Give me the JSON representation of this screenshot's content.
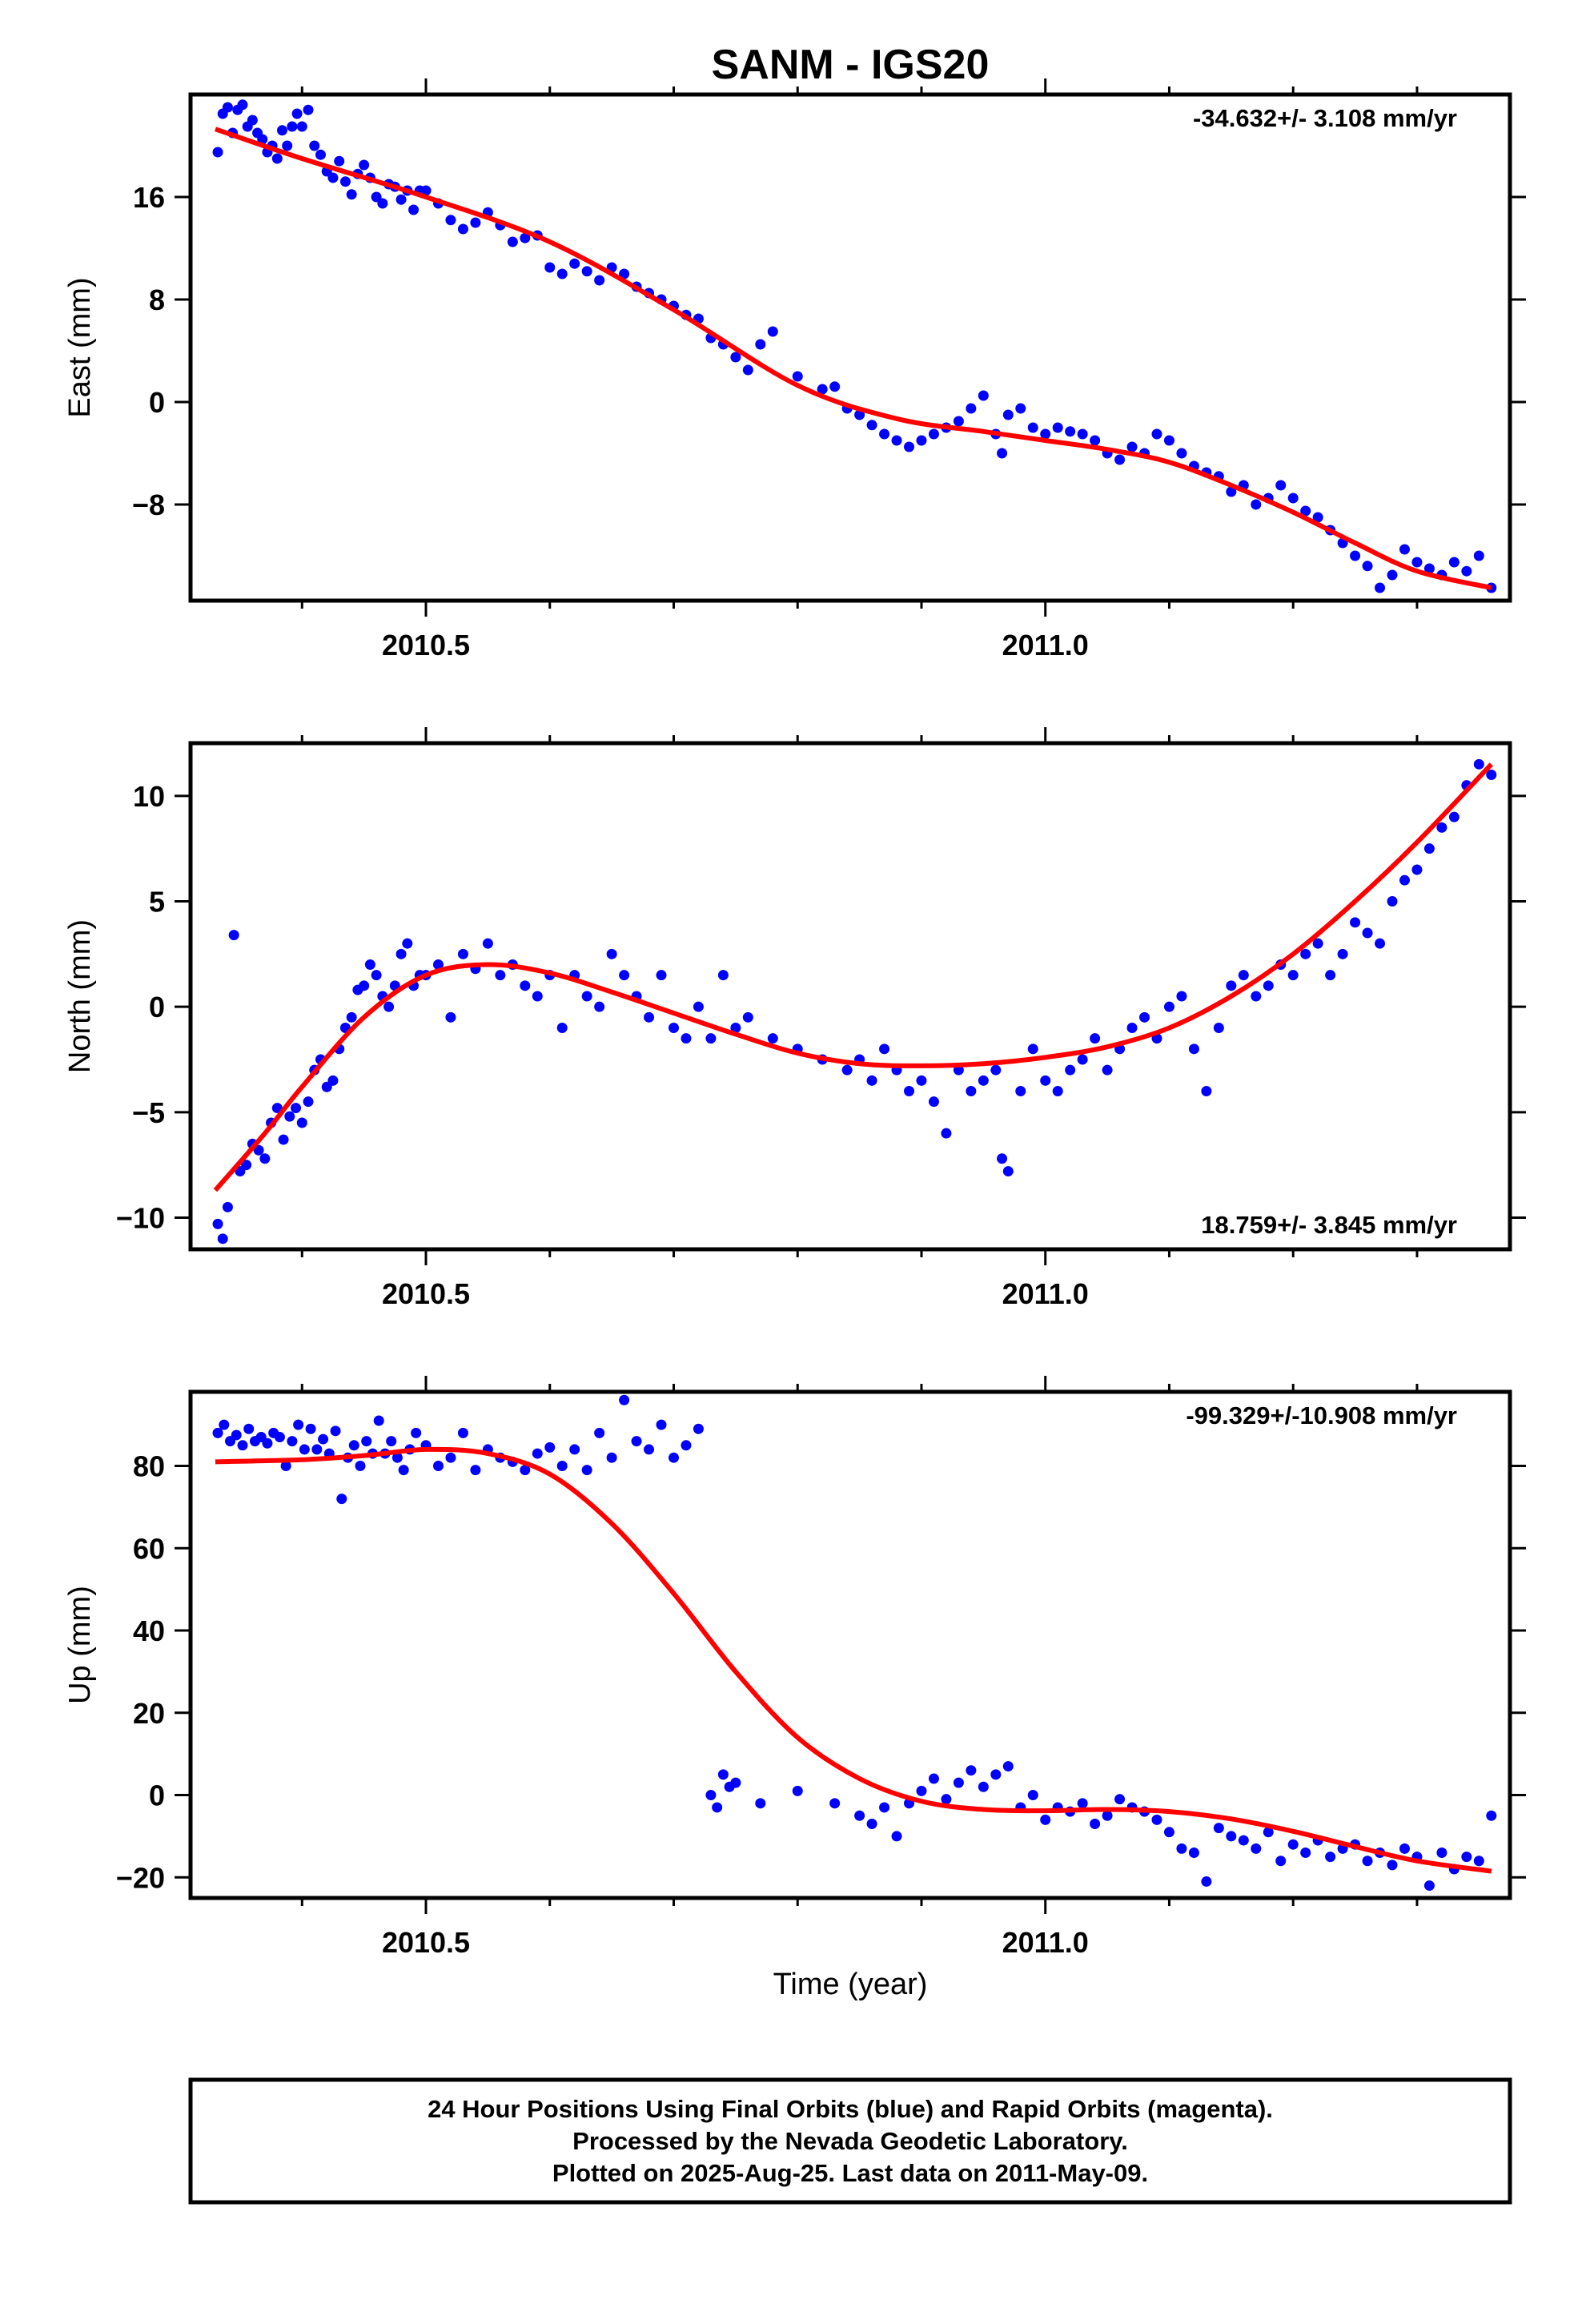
{
  "title": "SANM - IGS20",
  "xlabel": "Time (year)",
  "caption": [
    "24 Hour Positions Using Final Orbits (blue) and Rapid Orbits (magenta).",
    "Processed by the Nevada Geodetic Laboratory.",
    "Plotted on 2025-Aug-25. Last data on 2011-May-09."
  ],
  "colors": {
    "data": "#0000ff",
    "fit": "#ff0000",
    "frame": "#000000"
  },
  "chart_data": [
    {
      "type": "scatter",
      "ylabel": "East (mm)",
      "rate": "-34.632+/- 3.108 mm/yr",
      "rate_position": "top-right",
      "xlim": [
        2010.31,
        2011.375
      ],
      "ylim": [
        -15.5,
        24
      ],
      "xticks": [
        2010.5,
        2011.0
      ],
      "xtick_labels": [
        "2010.5",
        "2011.0"
      ],
      "yticks": [
        16,
        8,
        0,
        -8
      ],
      "ytick_labels": [
        "16",
        "8",
        "0",
        "−8"
      ],
      "fit": {
        "x": [
          2010.33,
          2010.4,
          2010.5,
          2010.6,
          2010.7,
          2010.8,
          2010.88,
          2010.95,
          2011.0,
          2011.05,
          2011.1,
          2011.15,
          2011.2,
          2011.25,
          2011.3,
          2011.36
        ],
        "y": [
          21.3,
          19.0,
          16.0,
          12.5,
          7.2,
          1.3,
          -1.3,
          -2.3,
          -3.0,
          -3.7,
          -4.7,
          -6.5,
          -8.6,
          -11.0,
          -13.2,
          -14.5
        ]
      },
      "series": [
        {
          "name": "Final Orbits",
          "x": [
            2010.332,
            2010.336,
            2010.34,
            2010.344,
            2010.348,
            2010.352,
            2010.356,
            2010.36,
            2010.364,
            2010.368,
            2010.372,
            2010.376,
            2010.38,
            2010.384,
            2010.388,
            2010.392,
            2010.396,
            2010.4,
            2010.405,
            2010.41,
            2010.415,
            2010.42,
            2010.425,
            2010.43,
            2010.435,
            2010.44,
            2010.445,
            2010.45,
            2010.455,
            2010.46,
            2010.465,
            2010.47,
            2010.475,
            2010.48,
            2010.485,
            2010.49,
            2010.495,
            2010.5,
            2010.51,
            2010.52,
            2010.53,
            2010.54,
            2010.55,
            2010.56,
            2010.57,
            2010.58,
            2010.59,
            2010.6,
            2010.61,
            2010.62,
            2010.63,
            2010.64,
            2010.65,
            2010.66,
            2010.67,
            2010.68,
            2010.69,
            2010.7,
            2010.71,
            2010.72,
            2010.73,
            2010.74,
            2010.75,
            2010.76,
            2010.77,
            2010.78,
            2010.8,
            2010.82,
            2010.83,
            2010.84,
            2010.85,
            2010.86,
            2010.87,
            2010.88,
            2010.89,
            2010.9,
            2010.91,
            2010.92,
            2010.93,
            2010.94,
            2010.95,
            2010.96,
            2010.965,
            2010.97,
            2010.98,
            2010.99,
            2011.0,
            2011.01,
            2011.02,
            2011.03,
            2011.04,
            2011.05,
            2011.06,
            2011.07,
            2011.08,
            2011.09,
            2011.1,
            2011.11,
            2011.12,
            2011.13,
            2011.14,
            2011.15,
            2011.16,
            2011.17,
            2011.18,
            2011.19,
            2011.2,
            2011.21,
            2011.22,
            2011.23,
            2011.24,
            2011.25,
            2011.26,
            2011.27,
            2011.28,
            2011.29,
            2011.3,
            2011.31,
            2011.32,
            2011.33,
            2011.34,
            2011.35,
            2011.36
          ],
          "y": [
            19.5,
            22.5,
            23.0,
            21.0,
            22.8,
            23.2,
            21.5,
            22.0,
            21.0,
            20.5,
            19.5,
            20.0,
            19.0,
            21.2,
            20.0,
            21.5,
            22.5,
            21.5,
            22.8,
            20.0,
            19.3,
            18.0,
            17.5,
            18.8,
            17.2,
            16.2,
            17.8,
            18.5,
            17.5,
            16.0,
            15.5,
            17.0,
            16.8,
            15.8,
            16.5,
            15.0,
            16.5,
            16.5,
            15.5,
            14.2,
            13.5,
            14.0,
            14.8,
            13.8,
            12.5,
            12.8,
            13.0,
            10.5,
            10.0,
            10.8,
            10.2,
            9.5,
            10.5,
            10.0,
            9.0,
            8.5,
            8.0,
            7.5,
            6.8,
            6.5,
            5.0,
            4.5,
            3.5,
            2.5,
            4.5,
            5.5,
            2.0,
            1.0,
            1.2,
            -0.5,
            -1.0,
            -1.8,
            -2.5,
            -3.0,
            -3.5,
            -3.0,
            -2.5,
            -2.0,
            -1.5,
            -0.5,
            0.5,
            -2.5,
            -4.0,
            -1.0,
            -0.5,
            -2.0,
            -2.5,
            -2.0,
            -2.3,
            -2.5,
            -3.0,
            -4.0,
            -4.5,
            -3.5,
            -4.0,
            -2.5,
            -3.0,
            -4.0,
            -5.0,
            -5.5,
            -5.8,
            -7.0,
            -6.5,
            -8.0,
            -7.5,
            -6.5,
            -7.5,
            -8.5,
            -9.0,
            -10.0,
            -11.0,
            -12.0,
            -12.8,
            -14.5,
            -13.5,
            -11.5,
            -12.5,
            -13.0,
            -13.5,
            -12.5,
            -13.2,
            -12.0,
            -14.5
          ]
        }
      ]
    },
    {
      "type": "scatter",
      "ylabel": "North (mm)",
      "rate": "18.759+/- 3.845 mm/yr",
      "rate_position": "bottom-right",
      "xlim": [
        2010.31,
        2011.375
      ],
      "ylim": [
        -11.5,
        12.5
      ],
      "xticks": [
        2010.5,
        2011.0
      ],
      "xtick_labels": [
        "2010.5",
        "2011.0"
      ],
      "yticks": [
        10,
        5,
        0,
        -5,
        -10
      ],
      "ytick_labels": [
        "10",
        "5",
        "0",
        "−5",
        "−10"
      ],
      "fit": {
        "x": [
          2010.33,
          2010.37,
          2010.4,
          2010.45,
          2010.5,
          2010.55,
          2010.6,
          2010.65,
          2010.7,
          2010.75,
          2010.8,
          2010.85,
          2010.9,
          2010.95,
          2011.0,
          2011.05,
          2011.1,
          2011.15,
          2011.2,
          2011.25,
          2011.3,
          2011.36
        ],
        "y": [
          -8.7,
          -6.0,
          -3.8,
          -0.5,
          1.5,
          2.0,
          1.6,
          0.7,
          -0.3,
          -1.3,
          -2.2,
          -2.7,
          -2.8,
          -2.7,
          -2.4,
          -1.9,
          -1.0,
          0.5,
          2.5,
          5.0,
          7.8,
          11.5
        ]
      },
      "series": [
        {
          "name": "Final Orbits",
          "x": [
            2010.332,
            2010.336,
            2010.34,
            2010.345,
            2010.35,
            2010.355,
            2010.36,
            2010.365,
            2010.37,
            2010.375,
            2010.38,
            2010.385,
            2010.39,
            2010.395,
            2010.4,
            2010.405,
            2010.41,
            2010.415,
            2010.42,
            2010.425,
            2010.43,
            2010.435,
            2010.44,
            2010.445,
            2010.45,
            2010.455,
            2010.46,
            2010.465,
            2010.47,
            2010.475,
            2010.48,
            2010.485,
            2010.49,
            2010.495,
            2010.5,
            2010.51,
            2010.52,
            2010.53,
            2010.54,
            2010.55,
            2010.56,
            2010.57,
            2010.58,
            2010.59,
            2010.6,
            2010.61,
            2010.62,
            2010.63,
            2010.64,
            2010.65,
            2010.66,
            2010.67,
            2010.68,
            2010.69,
            2010.7,
            2010.71,
            2010.72,
            2010.73,
            2010.74,
            2010.75,
            2010.76,
            2010.78,
            2010.8,
            2010.82,
            2010.84,
            2010.85,
            2010.86,
            2010.87,
            2010.88,
            2010.89,
            2010.9,
            2010.91,
            2010.92,
            2010.93,
            2010.94,
            2010.95,
            2010.96,
            2010.965,
            2010.97,
            2010.98,
            2010.99,
            2011.0,
            2011.01,
            2011.02,
            2011.03,
            2011.04,
            2011.05,
            2011.06,
            2011.07,
            2011.08,
            2011.09,
            2011.1,
            2011.11,
            2011.12,
            2011.13,
            2011.14,
            2011.15,
            2011.16,
            2011.17,
            2011.18,
            2011.19,
            2011.2,
            2011.21,
            2011.22,
            2011.23,
            2011.24,
            2011.25,
            2011.26,
            2011.27,
            2011.28,
            2011.29,
            2011.3,
            2011.31,
            2011.32,
            2011.33,
            2011.34,
            2011.35,
            2011.36
          ],
          "y": [
            -10.3,
            -11.0,
            -9.5,
            3.4,
            -7.8,
            -7.5,
            -6.5,
            -6.8,
            -7.2,
            -5.5,
            -4.8,
            -6.3,
            -5.2,
            -4.8,
            -5.5,
            -4.5,
            -3.0,
            -2.5,
            -3.8,
            -3.5,
            -2.0,
            -1.0,
            -0.5,
            0.8,
            1.0,
            2.0,
            1.5,
            0.5,
            0.0,
            1.0,
            2.5,
            3.0,
            1.0,
            1.5,
            1.5,
            2.0,
            -0.5,
            2.5,
            1.8,
            3.0,
            1.5,
            2.0,
            1.0,
            0.5,
            1.5,
            -1.0,
            1.5,
            0.5,
            0.0,
            2.5,
            1.5,
            0.5,
            -0.5,
            1.5,
            -1.0,
            -1.5,
            0.0,
            -1.5,
            1.5,
            -1.0,
            -0.5,
            -1.5,
            -2.0,
            -2.5,
            -3.0,
            -2.5,
            -3.5,
            -2.0,
            -3.0,
            -4.0,
            -3.5,
            -4.5,
            -6.0,
            -3.0,
            -4.0,
            -3.5,
            -3.0,
            -7.2,
            -7.8,
            -4.0,
            -2.0,
            -3.5,
            -4.0,
            -3.0,
            -2.5,
            -1.5,
            -3.0,
            -2.0,
            -1.0,
            -0.5,
            -1.5,
            0.0,
            0.5,
            -2.0,
            -4.0,
            -1.0,
            1.0,
            1.5,
            0.5,
            1.0,
            2.0,
            1.5,
            2.5,
            3.0,
            1.5,
            2.5,
            4.0,
            3.5,
            3.0,
            5.0,
            6.0,
            6.5,
            7.5,
            8.5,
            9.0,
            10.5,
            11.5,
            11.0
          ]
        }
      ]
    },
    {
      "type": "scatter",
      "ylabel": "Up (mm)",
      "rate": "-99.329+/-10.908 mm/yr",
      "rate_position": "top-right",
      "xlim": [
        2010.31,
        2011.375
      ],
      "ylim": [
        -25,
        98
      ],
      "xticks": [
        2010.5,
        2011.0
      ],
      "xtick_labels": [
        "2010.5",
        "2011.0"
      ],
      "yticks": [
        80,
        60,
        40,
        20,
        0,
        -20
      ],
      "ytick_labels": [
        "80",
        "60",
        "40",
        "20",
        "0",
        "−20"
      ],
      "fit": {
        "x": [
          2010.33,
          2010.4,
          2010.45,
          2010.5,
          2010.55,
          2010.6,
          2010.65,
          2010.7,
          2010.75,
          2010.8,
          2010.85,
          2010.9,
          2010.95,
          2011.0,
          2011.05,
          2011.1,
          2011.15,
          2011.2,
          2011.25,
          2011.3,
          2011.36
        ],
        "y": [
          81.0,
          81.5,
          82.5,
          84.0,
          83.0,
          78.0,
          66.0,
          49.0,
          30.0,
          14.0,
          4.0,
          -1.5,
          -3.5,
          -3.8,
          -3.5,
          -4.0,
          -5.8,
          -8.8,
          -12.5,
          -16.0,
          -18.5
        ]
      },
      "series": [
        {
          "name": "Final Orbits",
          "x": [
            2010.332,
            2010.337,
            2010.342,
            2010.347,
            2010.352,
            2010.357,
            2010.362,
            2010.367,
            2010.372,
            2010.377,
            2010.382,
            2010.387,
            2010.392,
            2010.397,
            2010.402,
            2010.407,
            2010.412,
            2010.417,
            2010.422,
            2010.427,
            2010.432,
            2010.437,
            2010.442,
            2010.447,
            2010.452,
            2010.457,
            2010.462,
            2010.467,
            2010.472,
            2010.477,
            2010.482,
            2010.487,
            2010.492,
            2010.5,
            2010.51,
            2010.52,
            2010.53,
            2010.54,
            2010.55,
            2010.56,
            2010.57,
            2010.58,
            2010.59,
            2010.6,
            2010.61,
            2010.62,
            2010.63,
            2010.64,
            2010.65,
            2010.66,
            2010.67,
            2010.68,
            2010.69,
            2010.7,
            2010.71,
            2010.72,
            2010.73,
            2010.735,
            2010.74,
            2010.745,
            2010.75,
            2010.77,
            2010.8,
            2010.83,
            2010.85,
            2010.86,
            2010.87,
            2010.88,
            2010.89,
            2010.9,
            2010.91,
            2010.92,
            2010.93,
            2010.94,
            2010.95,
            2010.96,
            2010.97,
            2010.98,
            2010.99,
            2011.0,
            2011.01,
            2011.02,
            2011.03,
            2011.04,
            2011.05,
            2011.06,
            2011.07,
            2011.08,
            2011.09,
            2011.1,
            2011.11,
            2011.12,
            2011.13,
            2011.14,
            2011.15,
            2011.16,
            2011.17,
            2011.18,
            2011.19,
            2011.2,
            2011.21,
            2011.22,
            2011.23,
            2011.24,
            2011.25,
            2011.26,
            2011.27,
            2011.28,
            2011.29,
            2011.3,
            2011.31,
            2011.32,
            2011.33,
            2011.34,
            2011.35,
            2011.36
          ],
          "y": [
            88.0,
            90.0,
            86.0,
            87.5,
            85.0,
            89.0,
            86.0,
            87.0,
            85.5,
            88.0,
            87.0,
            80.0,
            86.0,
            90.0,
            84.0,
            89.0,
            84.0,
            86.5,
            83.0,
            88.5,
            72.0,
            82.0,
            85.0,
            80.0,
            86.0,
            83.0,
            91.0,
            83.0,
            86.0,
            82.0,
            79.0,
            84.0,
            88.0,
            85.0,
            80.0,
            82.0,
            88.0,
            79.0,
            84.0,
            82.0,
            81.0,
            79.0,
            83.0,
            84.5,
            80.0,
            84.0,
            79.0,
            88.0,
            82.0,
            96.0,
            86.0,
            84.0,
            90.0,
            82.0,
            85.0,
            89.0,
            0.0,
            -3.0,
            5.0,
            2.0,
            3.0,
            -2.0,
            1.0,
            -2.0,
            -5.0,
            -7.0,
            -3.0,
            -10.0,
            -2.0,
            1.0,
            4.0,
            -1.0,
            3.0,
            6.0,
            2.0,
            5.0,
            7.0,
            -3.0,
            0.0,
            -6.0,
            -3.0,
            -4.0,
            -2.0,
            -7.0,
            -5.0,
            -1.0,
            -3.0,
            -4.0,
            -6.0,
            -9.0,
            -13.0,
            -14.0,
            -21.0,
            -8.0,
            -10.0,
            -11.0,
            -13.0,
            -9.0,
            -16.0,
            -12.0,
            -14.0,
            -11.0,
            -15.0,
            -13.0,
            -12.0,
            -16.0,
            -14.0,
            -17.0,
            -13.0,
            -15.0,
            -22.0,
            -14.0,
            -18.0,
            -15.0,
            -16.0,
            -5.0
          ]
        }
      ]
    }
  ]
}
